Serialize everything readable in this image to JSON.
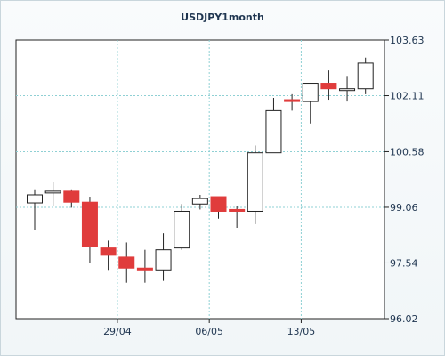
{
  "chart_data": {
    "type": "candlestick",
    "title": "USDJPY1month",
    "xlabel": "",
    "ylabel": "",
    "ylim": [
      96.02,
      103.63
    ],
    "yticks": [
      "103.63",
      "102.11",
      "100.58",
      "99.06",
      "97.54",
      "96.02"
    ],
    "xticks": [
      {
        "index": 5,
        "label": "29/04"
      },
      {
        "index": 10,
        "label": "06/05"
      },
      {
        "index": 15,
        "label": "13/05"
      }
    ],
    "grid": true,
    "legend": "none",
    "colors": {
      "up": "#ffffff",
      "down": "#e03c3c",
      "outline": "#222222",
      "grid": "#8fd0d4"
    },
    "candles": [
      {
        "open": 99.18,
        "high": 99.55,
        "low": 98.45,
        "close": 99.4
      },
      {
        "open": 99.5,
        "high": 99.75,
        "low": 99.1,
        "close": 99.5
      },
      {
        "open": 99.5,
        "high": 99.55,
        "low": 99.05,
        "close": 99.2
      },
      {
        "open": 99.2,
        "high": 99.35,
        "low": 97.55,
        "close": 98.0
      },
      {
        "open": 97.95,
        "high": 98.15,
        "low": 97.35,
        "close": 97.75
      },
      {
        "open": 97.7,
        "high": 98.1,
        "low": 97.0,
        "close": 97.4
      },
      {
        "open": 97.4,
        "high": 97.9,
        "low": 97.0,
        "close": 97.35
      },
      {
        "open": 97.35,
        "high": 98.35,
        "low": 97.05,
        "close": 97.9
      },
      {
        "open": 97.95,
        "high": 99.15,
        "low": 97.9,
        "close": 98.95
      },
      {
        "open": 99.15,
        "high": 99.4,
        "low": 99.0,
        "close": 99.3
      },
      {
        "open": 99.35,
        "high": 99.35,
        "low": 98.75,
        "close": 98.95
      },
      {
        "open": 99.0,
        "high": 99.1,
        "low": 98.5,
        "close": 98.95
      },
      {
        "open": 98.95,
        "high": 100.75,
        "low": 98.6,
        "close": 100.55
      },
      {
        "open": 100.55,
        "high": 102.05,
        "low": 100.55,
        "close": 101.7
      },
      {
        "open": 102.0,
        "high": 102.15,
        "low": 101.7,
        "close": 101.95
      },
      {
        "open": 101.95,
        "high": 102.4,
        "low": 101.35,
        "close": 102.45
      },
      {
        "open": 102.45,
        "high": 102.8,
        "low": 102.0,
        "close": 102.3
      },
      {
        "open": 102.3,
        "high": 102.65,
        "low": 101.95,
        "close": 102.3
      },
      {
        "open": 102.3,
        "high": 103.15,
        "low": 102.15,
        "close": 103.0
      }
    ]
  }
}
